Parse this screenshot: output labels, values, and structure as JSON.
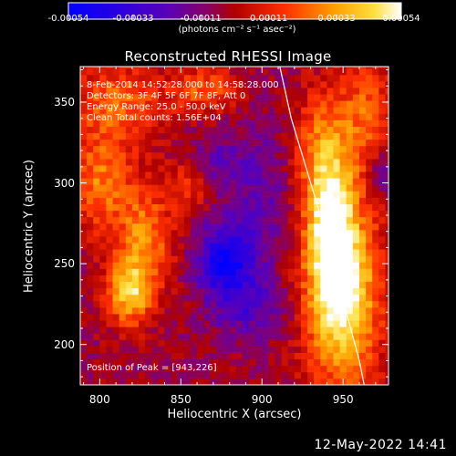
{
  "chart_data": {
    "type": "heatmap",
    "title": "Reconstructed RHESSI Image",
    "xlabel": "Heliocentric X (arcsec)",
    "ylabel": "Heliocentric Y (arcsec)",
    "xlim": [
      788,
      978
    ],
    "ylim": [
      175,
      372
    ],
    "x_ticks": [
      800,
      850,
      900,
      950
    ],
    "y_ticks": [
      200,
      250,
      300,
      350
    ],
    "colorbar": {
      "labels": [
        "-0.00054",
        "-0.00033",
        "-0.00011",
        "0.00011",
        "0.00033",
        "0.00054"
      ],
      "values": [
        -0.00054,
        -0.00033,
        -0.00011,
        0.00011,
        0.00033,
        0.00054
      ],
      "range": [
        -0.00054,
        0.00054
      ],
      "units": "(photons cm⁻² s⁻¹ asec⁻²)"
    },
    "annotations": [
      "8-Feb-2014 14:52:28.000 to 14:58:28.000",
      "Detectors: 3F 4F 5F 6F 7F 8F, Att 0",
      "Energy Range: 25.0 - 50.0 keV",
      "Clean     Total counts: 1.56E+04"
    ],
    "peak_label": "Position of Peak = [943,226]",
    "peak": [
      943,
      226
    ],
    "limb": [
      [
        911,
        372
      ],
      [
        918,
        340
      ],
      [
        927,
        310
      ],
      [
        936,
        280
      ],
      [
        944,
        250
      ],
      [
        952,
        220
      ],
      [
        960,
        190
      ],
      [
        963,
        175
      ]
    ],
    "sources": [
      {
        "x": 950,
        "y": 232,
        "amp": 1.05,
        "sx": 16,
        "sy": 42
      },
      {
        "x": 942,
        "y": 270,
        "amp": 0.7,
        "sx": 10,
        "sy": 30
      },
      {
        "x": 938,
        "y": 320,
        "amp": 0.55,
        "sx": 12,
        "sy": 28
      },
      {
        "x": 965,
        "y": 345,
        "amp": 0.45,
        "sx": 12,
        "sy": 24
      },
      {
        "x": 818,
        "y": 232,
        "amp": 0.8,
        "sx": 10,
        "sy": 14
      },
      {
        "x": 828,
        "y": 265,
        "amp": 0.6,
        "sx": 12,
        "sy": 22
      },
      {
        "x": 800,
        "y": 300,
        "amp": 0.55,
        "sx": 14,
        "sy": 22
      },
      {
        "x": 812,
        "y": 350,
        "amp": 0.5,
        "sx": 20,
        "sy": 18
      },
      {
        "x": 865,
        "y": 358,
        "amp": 0.45,
        "sx": 14,
        "sy": 10
      },
      {
        "x": 855,
        "y": 300,
        "amp": 0.35,
        "sx": 10,
        "sy": 12
      },
      {
        "x": 878,
        "y": 252,
        "amp": -0.85,
        "sx": 12,
        "sy": 16
      },
      {
        "x": 893,
        "y": 222,
        "amp": -0.35,
        "sx": 15,
        "sy": 12
      },
      {
        "x": 872,
        "y": 312,
        "amp": -0.3,
        "sx": 14,
        "sy": 12
      },
      {
        "x": 975,
        "y": 305,
        "amp": -0.4,
        "sx": 6,
        "sy": 10
      },
      {
        "x": 900,
        "y": 290,
        "amp": -0.25,
        "sx": 12,
        "sy": 30
      }
    ]
  },
  "timestamp": "12-May-2022 14:41"
}
